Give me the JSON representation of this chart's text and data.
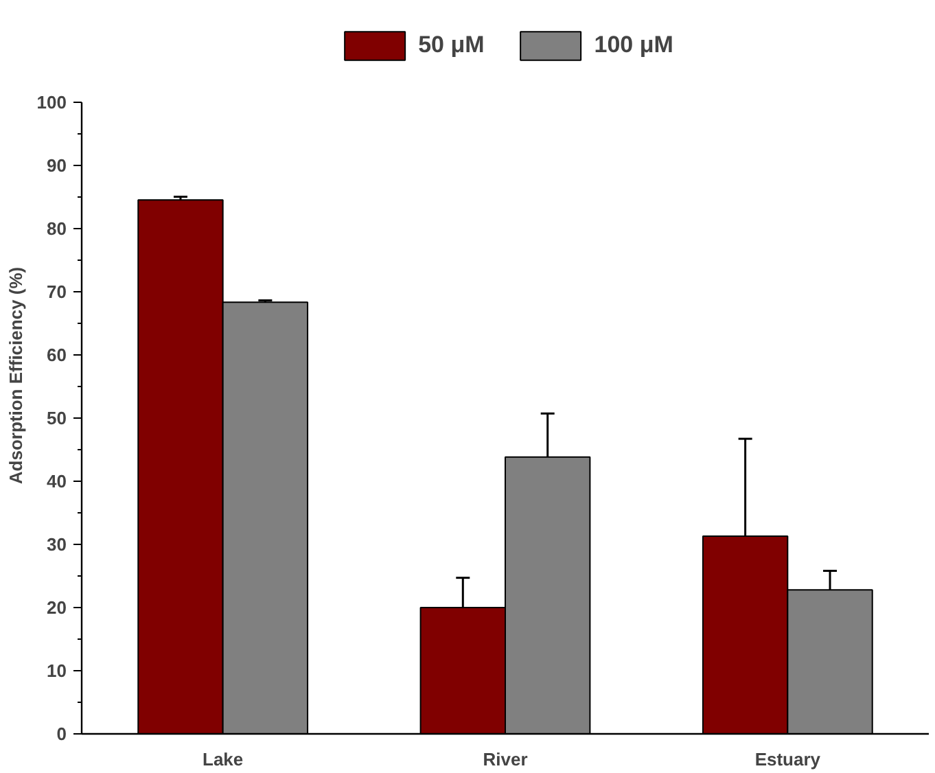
{
  "chart_data": {
    "type": "bar",
    "ylabel": "Adsorption Efficiency (%)",
    "categories": [
      "Lake",
      "River",
      "Estuary"
    ],
    "series": [
      {
        "name": "50 μM",
        "color": "#800000",
        "values": [
          84.5,
          20,
          31.3
        ],
        "errors": [
          0.5,
          4.7,
          15.4
        ]
      },
      {
        "name": "100 μM",
        "color": "#808080",
        "values": [
          68.3,
          43.8,
          22.8
        ],
        "errors": [
          0.3,
          6.9,
          3
        ]
      }
    ],
    "ylim": [
      0,
      100
    ],
    "yticks": [
      0,
      {
        "value": 5,
        "label": null
      },
      10,
      {
        "value": 15,
        "label": null
      },
      20,
      {
        "value": 25,
        "label": null
      },
      30,
      {
        "value": 35,
        "label": null
      },
      40,
      {
        "value": 45,
        "label": null
      },
      50,
      {
        "value": 55,
        "label": null
      },
      60,
      {
        "value": 65,
        "label": null
      },
      70,
      {
        "value": 75,
        "label": null
      },
      80,
      {
        "value": 85,
        "label": null
      },
      90,
      {
        "value": 95,
        "label": null
      },
      100
    ],
    "grid": false,
    "legend": "top"
  }
}
